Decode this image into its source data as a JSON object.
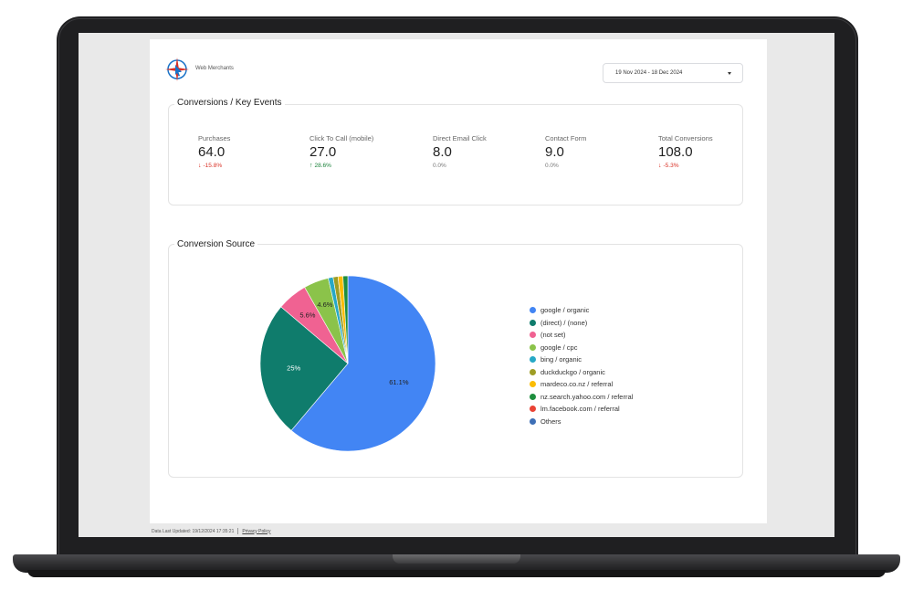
{
  "report": {
    "brand": "Web Merchants",
    "date_range": "19 Nov 2024 - 18 Dec 2024"
  },
  "kpi_section": {
    "title": "Conversions / Key Events",
    "items": [
      {
        "label": "Purchases",
        "value": "64.0",
        "delta": "-15.8%",
        "trend": "down"
      },
      {
        "label": "Click To Call (mobile)",
        "value": "27.0",
        "delta": "28.6%",
        "trend": "up"
      },
      {
        "label": "Direct Email Click",
        "value": "8.0",
        "delta": "0.0%",
        "trend": "flat"
      },
      {
        "label": "Contact Form",
        "value": "9.0",
        "delta": "0.0%",
        "trend": "flat"
      },
      {
        "label": "Total Conversions",
        "value": "108.0",
        "delta": "-5.3%",
        "trend": "down"
      }
    ]
  },
  "source_section": {
    "title": "Conversion Source"
  },
  "chart_data": {
    "type": "pie",
    "legend_position": "right",
    "slices": [
      {
        "name": "google / organic",
        "value": 61.1,
        "label": "61.1%",
        "color": "#4285f4"
      },
      {
        "name": "(direct) / (none)",
        "value": 25,
        "label": "25%",
        "color": "#0f7c6c"
      },
      {
        "name": "(not set)",
        "value": 5.6,
        "label": "5.6%",
        "color": "#f06292"
      },
      {
        "name": "google / cpc",
        "value": 4.6,
        "label": "4.6%",
        "color": "#8bc34a"
      },
      {
        "name": "bing / organic",
        "value": 0.9,
        "label": "",
        "color": "#26a8c6"
      },
      {
        "name": "duckduckgo / organic",
        "value": 0.9,
        "label": "",
        "color": "#9e9d24"
      },
      {
        "name": "mardeco.co.nz / referral",
        "value": 0.9,
        "label": "",
        "color": "#fbbc04"
      },
      {
        "name": "nz.search.yahoo.com / referral",
        "value": 0.9,
        "label": "",
        "color": "#1e8e3e"
      },
      {
        "name": "lm.facebook.com / referral",
        "value": 0.0,
        "label": "",
        "color": "#ea4335"
      },
      {
        "name": "Others",
        "value": 0.0,
        "label": "",
        "color": "#3d6fb6"
      }
    ]
  },
  "footer": {
    "updated": "Data Last Updated: 19/12/2024 17:35:21",
    "privacy": "Privacy Policy"
  },
  "colors": {
    "down": "#d93025",
    "up": "#188038"
  }
}
